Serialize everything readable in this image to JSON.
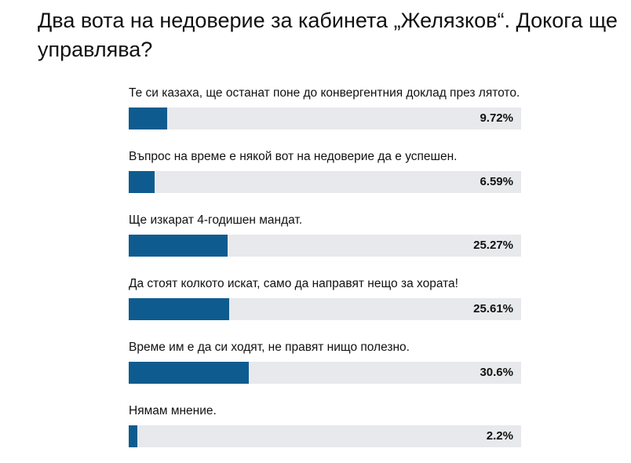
{
  "title": "Два вота на недоверие за кабинета „Желязков“. Докога ще управлява?",
  "colors": {
    "bar_fill": "#0e5c8f",
    "bar_track": "#e8e9ec"
  },
  "chart_data": {
    "type": "bar",
    "orientation": "horizontal",
    "title": "Два вота на недоверие за кабинета „Желязков“. Докога ще управлява?",
    "xlim": [
      0,
      100
    ],
    "categories": [
      "Те си казаха, ще останат поне до конвергентния доклад през лятото.",
      "Въпрос на време е някой вот на недоверие да е успешен.",
      "Ще изкарат 4-годишен мандат.",
      "Да стоят колкото искат, само да направят нещо за хората!",
      "Време им е да си ходят, не правят нищо полезно.",
      "Нямам мнение."
    ],
    "values": [
      9.72,
      6.59,
      25.27,
      25.61,
      30.6,
      2.2
    ],
    "value_labels": [
      "9.72%",
      "6.59%",
      "25.27%",
      "25.61%",
      "30.6%",
      "2.2%"
    ]
  }
}
